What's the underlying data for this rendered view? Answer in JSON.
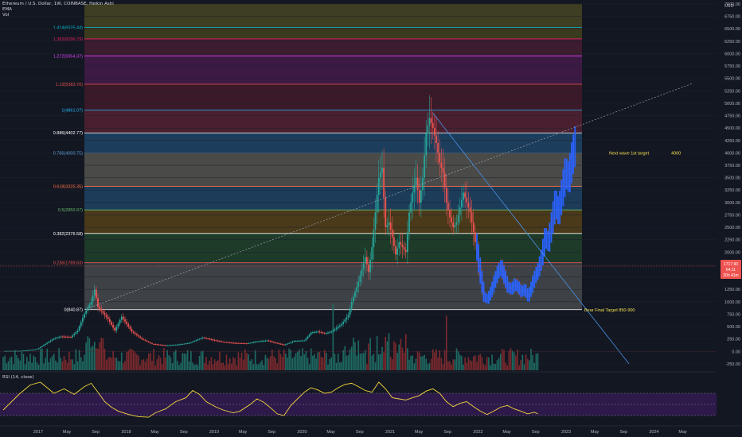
{
  "header": {
    "title": "Ethereum / U.S. Dollar, 1W, COINBASE, Heikin Ashi",
    "ema": "EMA",
    "vol": "Vol",
    "currency": "USD"
  },
  "rsi_header": "RSI (14, close)",
  "colors": {
    "background": "#131722",
    "candle_up": "#26a69a",
    "candle_down": "#ef5350",
    "projection": "#2962ff",
    "rsi_line": "#f5d73b",
    "annotation": "#f5e050"
  },
  "annotations": {
    "next_wave": "Next wave 1st target",
    "next_wave_value": "4000",
    "bear_target": "Bear Final Target 850-900"
  },
  "price_badges": [
    "1717.90",
    "64.11",
    "20h 41m"
  ],
  "chart_data": [
    {
      "type": "candlestick",
      "ylim": [
        -300,
        7000
      ],
      "y_ticks": [
        {
          "label": "7000.00",
          "v": 7000
        },
        {
          "label": "6750.00",
          "v": 6750
        },
        {
          "label": "6500.00",
          "v": 6500
        },
        {
          "label": "6250.00",
          "v": 6250
        },
        {
          "label": "6000.00",
          "v": 6000
        },
        {
          "label": "5750.00",
          "v": 5750
        },
        {
          "label": "5500.00",
          "v": 5500
        },
        {
          "label": "5250.00",
          "v": 5250
        },
        {
          "label": "5000.00",
          "v": 5000
        },
        {
          "label": "4750.00",
          "v": 4750
        },
        {
          "label": "4500.00",
          "v": 4500
        },
        {
          "label": "4250.00",
          "v": 4250
        },
        {
          "label": "4000.00",
          "v": 4000
        },
        {
          "label": "3750.00",
          "v": 3750
        },
        {
          "label": "3500.00",
          "v": 3500
        },
        {
          "label": "3250.00",
          "v": 3250
        },
        {
          "label": "3000.00",
          "v": 3000
        },
        {
          "label": "2750.00",
          "v": 2750
        },
        {
          "label": "2500.00",
          "v": 2500
        },
        {
          "label": "2250.00",
          "v": 2250
        },
        {
          "label": "2000.00",
          "v": 2000
        },
        {
          "label": "1750.00",
          "v": 1750
        },
        {
          "label": "1500.00",
          "v": 1500
        },
        {
          "label": "1250.00",
          "v": 1250
        },
        {
          "label": "1000.00",
          "v": 1000
        },
        {
          "label": "750.00",
          "v": 750
        },
        {
          "label": "500.00",
          "v": 500
        },
        {
          "label": "250.00",
          "v": 250
        },
        {
          "label": "0.00",
          "v": 0
        },
        {
          "label": "-250.00",
          "v": -250
        }
      ],
      "fib_levels": [
        {
          "label": "1.414(6525.44)",
          "v": 6525.44,
          "color": "#00bcd4",
          "fill": "#3a3a1e"
        },
        {
          "label": "1.382(6296.79)",
          "v": 6296.79,
          "color": "#e91e63",
          "fill": "#3c1c2e"
        },
        {
          "label": "1.272(5954.37)",
          "v": 5954.37,
          "color": "#e040fb",
          "fill": "#3c1a44"
        },
        {
          "label": "1.13(5383.70)",
          "v": 5383.7,
          "color": "#ef5350",
          "fill": "#3a1a28"
        },
        {
          "label": "1(4861.07)",
          "v": 4861.07,
          "color": "#29b6f6",
          "fill": "#4a2030"
        },
        {
          "label": "0.886(4402.77)",
          "v": 4402.77,
          "color": "#ffffff",
          "fill": "#1c3d5c"
        },
        {
          "label": "0.786(4000.75)",
          "v": 4000.75,
          "color": "#64b5f6",
          "fill": "#4a4a48"
        },
        {
          "label": "0.618(3325.35)",
          "v": 3325.35,
          "color": "#ff7043",
          "fill": "#1c3c5a"
        },
        {
          "label": "0.5(2850.97)",
          "v": 2850.97,
          "color": "#66bb6a",
          "fill": "#4a3a1a"
        },
        {
          "label": "0.382(2376.58)",
          "v": 2376.58,
          "color": "#ffffff",
          "fill": "#1e3a28"
        },
        {
          "label": "0.236(1789.63)",
          "v": 1789.63,
          "color": "#ef5350",
          "fill": "#3e4246"
        },
        {
          "label": "0(840.87)",
          "v": 840.87,
          "color": "#ffffff",
          "fill": "#4a1c24"
        }
      ],
      "x_ticks": [
        "2017",
        "May",
        "Sep",
        "2018",
        "May",
        "Sep",
        "2019",
        "May",
        "Sep",
        "2020",
        "May",
        "Sep",
        "2021",
        "May",
        "Sep",
        "2022",
        "May",
        "Sep",
        "2023",
        "May",
        "Sep",
        "2024",
        "May"
      ],
      "price_path_weekly_close": [
        [
          0,
          8
        ],
        [
          10,
          11
        ],
        [
          20,
          45
        ],
        [
          30,
          260
        ],
        [
          34,
          300
        ],
        [
          40,
          290
        ],
        [
          44,
          420
        ],
        [
          48,
          760
        ],
        [
          52,
          1000
        ],
        [
          54,
          1250
        ],
        [
          56,
          900
        ],
        [
          62,
          650
        ],
        [
          66,
          420
        ],
        [
          70,
          700
        ],
        [
          76,
          400
        ],
        [
          82,
          250
        ],
        [
          88,
          150
        ],
        [
          96,
          120
        ],
        [
          104,
          140
        ],
        [
          110,
          170
        ],
        [
          118,
          280
        ],
        [
          124,
          230
        ],
        [
          130,
          190
        ],
        [
          136,
          170
        ],
        [
          144,
          160
        ],
        [
          150,
          200
        ],
        [
          156,
          220
        ],
        [
          160,
          180
        ],
        [
          166,
          130
        ],
        [
          172,
          210
        ],
        [
          178,
          220
        ],
        [
          182,
          380
        ],
        [
          186,
          400
        ],
        [
          190,
          360
        ],
        [
          194,
          400
        ],
        [
          200,
          550
        ],
        [
          204,
          730
        ],
        [
          206,
          1000
        ],
        [
          210,
          1400
        ],
        [
          214,
          1900
        ],
        [
          216,
          1600
        ],
        [
          218,
          2100
        ],
        [
          222,
          3500
        ],
        [
          224,
          3700
        ],
        [
          226,
          2500
        ],
        [
          228,
          2600
        ],
        [
          230,
          2300
        ],
        [
          232,
          1950
        ],
        [
          234,
          2200
        ],
        [
          238,
          2000
        ],
        [
          240,
          2800
        ],
        [
          242,
          3200
        ],
        [
          244,
          3500
        ],
        [
          246,
          3000
        ],
        [
          248,
          3500
        ],
        [
          250,
          4400
        ],
        [
          252,
          4700
        ],
        [
          254,
          4500
        ],
        [
          256,
          4200
        ],
        [
          258,
          3800
        ],
        [
          260,
          3600
        ],
        [
          262,
          3000
        ],
        [
          264,
          2700
        ],
        [
          266,
          2500
        ],
        [
          268,
          2600
        ],
        [
          270,
          2900
        ],
        [
          272,
          3200
        ],
        [
          274,
          3000
        ],
        [
          276,
          2800
        ],
        [
          278,
          2400
        ],
        [
          280,
          2000
        ],
        [
          282,
          1500
        ],
        [
          284,
          1100
        ],
        [
          286,
          1050
        ],
        [
          288,
          1200
        ],
        [
          290,
          1400
        ],
        [
          292,
          1600
        ],
        [
          294,
          1700
        ],
        [
          296,
          1500
        ],
        [
          298,
          1300
        ],
        [
          300,
          1250
        ],
        [
          302,
          1350
        ],
        [
          304,
          1300
        ],
        [
          306,
          1200
        ],
        [
          308,
          1250
        ],
        [
          310,
          1100
        ],
        [
          312,
          1300
        ],
        [
          314,
          1500
        ],
        [
          316,
          1650
        ]
      ],
      "projection_path_weekly_close": [
        [
          316,
          1650
        ],
        [
          318,
          1900
        ],
        [
          320,
          2300
        ],
        [
          322,
          2200
        ],
        [
          324,
          2600
        ],
        [
          326,
          3000
        ],
        [
          328,
          2800
        ],
        [
          330,
          3200
        ],
        [
          332,
          3600
        ],
        [
          334,
          3500
        ],
        [
          336,
          3900
        ],
        [
          338,
          4200
        ]
      ]
    },
    {
      "type": "line",
      "name": "RSI (14, close)",
      "ylim": [
        20,
        100
      ],
      "y_ticks": [
        {
          "label": "100.00",
          "v": 100
        },
        {
          "label": "80.00",
          "v": 80
        },
        {
          "label": "60.00",
          "v": 60
        },
        {
          "label": "40.00",
          "v": 40
        },
        {
          "label": "20.00",
          "v": 20
        }
      ],
      "band": [
        30,
        70
      ],
      "mid": 50,
      "values": [
        [
          0,
          40
        ],
        [
          5,
          55
        ],
        [
          10,
          70
        ],
        [
          16,
          85
        ],
        [
          22,
          90
        ],
        [
          26,
          80
        ],
        [
          30,
          70
        ],
        [
          36,
          78
        ],
        [
          42,
          68
        ],
        [
          48,
          82
        ],
        [
          52,
          88
        ],
        [
          56,
          72
        ],
        [
          60,
          55
        ],
        [
          64,
          45
        ],
        [
          68,
          38
        ],
        [
          74,
          32
        ],
        [
          80,
          28
        ],
        [
          86,
          27
        ],
        [
          90,
          35
        ],
        [
          96,
          42
        ],
        [
          102,
          55
        ],
        [
          108,
          62
        ],
        [
          112,
          75
        ],
        [
          116,
          68
        ],
        [
          120,
          55
        ],
        [
          126,
          45
        ],
        [
          130,
          40
        ],
        [
          136,
          35
        ],
        [
          140,
          38
        ],
        [
          146,
          50
        ],
        [
          150,
          60
        ],
        [
          154,
          54
        ],
        [
          158,
          44
        ],
        [
          162,
          33
        ],
        [
          166,
          30
        ],
        [
          170,
          48
        ],
        [
          174,
          60
        ],
        [
          178,
          72
        ],
        [
          182,
          80
        ],
        [
          186,
          76
        ],
        [
          190,
          70
        ],
        [
          194,
          72
        ],
        [
          198,
          80
        ],
        [
          202,
          86
        ],
        [
          206,
          88
        ],
        [
          210,
          82
        ],
        [
          214,
          75
        ],
        [
          218,
          72
        ],
        [
          222,
          90
        ],
        [
          226,
          78
        ],
        [
          230,
          62
        ],
        [
          234,
          60
        ],
        [
          238,
          58
        ],
        [
          242,
          62
        ],
        [
          246,
          66
        ],
        [
          250,
          74
        ],
        [
          254,
          78
        ],
        [
          258,
          70
        ],
        [
          262,
          55
        ],
        [
          266,
          46
        ],
        [
          270,
          52
        ],
        [
          274,
          55
        ],
        [
          278,
          46
        ],
        [
          282,
          38
        ],
        [
          286,
          32
        ],
        [
          290,
          38
        ],
        [
          294,
          45
        ],
        [
          298,
          48
        ],
        [
          302,
          42
        ],
        [
          306,
          38
        ],
        [
          310,
          33
        ],
        [
          314,
          36
        ],
        [
          316,
          33
        ]
      ]
    }
  ]
}
